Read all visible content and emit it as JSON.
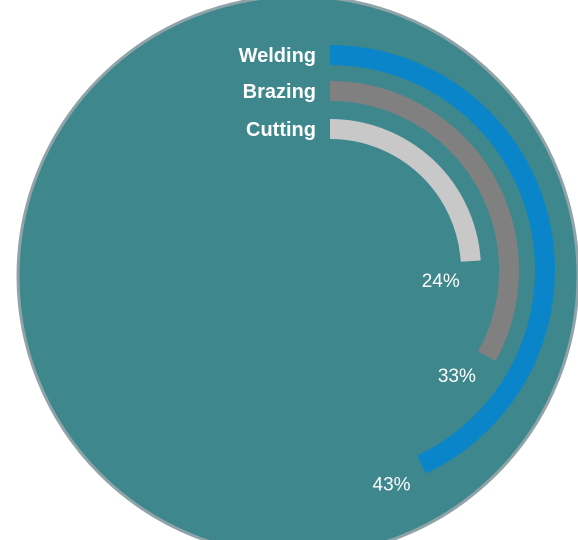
{
  "chart_data": {
    "type": "radial-bar",
    "title": "",
    "categories": [
      "Welding",
      "Brazing",
      "Cutting"
    ],
    "values": [
      43,
      33,
      24
    ],
    "value_labels": [
      "43%",
      "33%",
      "24%"
    ],
    "unit": "%",
    "colors": {
      "background_disc": "#3d878d",
      "disc_border": "#8fa3a8",
      "Welding": "#0b85c9",
      "Brazing": "#808080",
      "Cutting": "#c8c8c8",
      "label_text": "#ffffff"
    }
  }
}
